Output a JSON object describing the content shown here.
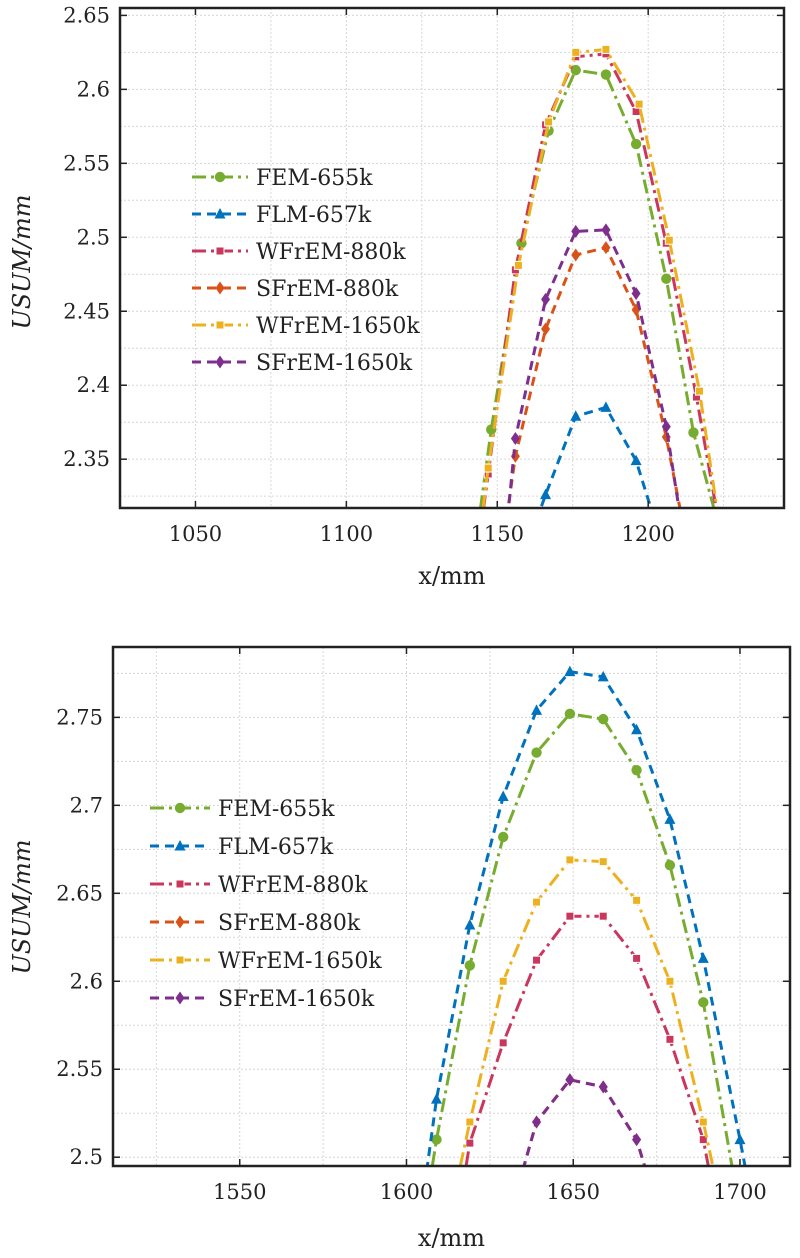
{
  "chart_data": [
    {
      "type": "line",
      "xlabel": "x/mm",
      "ylabel": "USUM/mm",
      "xlim": [
        1025,
        1245
      ],
      "ylim": [
        2.317,
        2.655
      ],
      "xticks": [
        1050,
        1100,
        1150,
        1200
      ],
      "yticks": [
        2.35,
        2.4,
        2.45,
        2.5,
        2.55,
        2.6,
        2.65
      ],
      "xtick_labels": [
        "1050",
        "1100",
        "1150",
        "1200"
      ],
      "ytick_labels": [
        "2.35",
        "2.4",
        "2.45",
        "2.5",
        "2.55",
        "2.6",
        "2.65"
      ],
      "grid": true,
      "legend_position": "left",
      "series": [
        {
          "name": "FEM-655k",
          "color": "#77ac30",
          "style": "dashdot",
          "marker": "circle",
          "x": [
            1142,
            1148,
            1158,
            1167,
            1176,
            1186,
            1196,
            1206,
            1215,
            1224
          ],
          "y": [
            2.28,
            2.37,
            2.496,
            2.572,
            2.613,
            2.61,
            2.563,
            2.472,
            2.368,
            2.3
          ]
        },
        {
          "name": "FLM-657k",
          "color": "#0072bd",
          "style": "dashed",
          "marker": "triangle",
          "x": [
            1158,
            1166,
            1176,
            1186,
            1196,
            1205
          ],
          "y": [
            2.28,
            2.326,
            2.379,
            2.385,
            2.349,
            2.29
          ]
        },
        {
          "name": "WFrEM-880k",
          "color": "#c9375e",
          "style": "dashdot",
          "marker": "square",
          "x": [
            1143,
            1147,
            1156,
            1166,
            1176,
            1186,
            1196,
            1206,
            1216,
            1224
          ],
          "y": [
            2.28,
            2.34,
            2.478,
            2.576,
            2.622,
            2.624,
            2.585,
            2.496,
            2.392,
            2.3
          ]
        },
        {
          "name": "SFrEM-880k",
          "color": "#d95319",
          "style": "dashed",
          "marker": "diamond",
          "x": [
            1151,
            1156,
            1166,
            1176,
            1186,
            1196,
            1206,
            1214
          ],
          "y": [
            2.28,
            2.352,
            2.438,
            2.488,
            2.493,
            2.451,
            2.365,
            2.28
          ]
        },
        {
          "name": "WFrEM-1650k",
          "color": "#edb120",
          "style": "dashdot",
          "marker": "square",
          "x": [
            1143,
            1147,
            1157,
            1167,
            1176,
            1186,
            1197,
            1207,
            1217,
            1224
          ],
          "y": [
            2.28,
            2.344,
            2.481,
            2.578,
            2.625,
            2.627,
            2.59,
            2.498,
            2.396,
            2.3
          ]
        },
        {
          "name": "SFrEM-1650k",
          "color": "#7e2f8e",
          "style": "dashed",
          "marker": "diamond",
          "x": [
            1152,
            1156,
            1166,
            1176,
            1186,
            1196,
            1206,
            1213
          ],
          "y": [
            2.28,
            2.364,
            2.458,
            2.504,
            2.505,
            2.462,
            2.372,
            2.28
          ]
        }
      ]
    },
    {
      "type": "line",
      "xlabel": "x/mm",
      "ylabel": "USUM/mm",
      "xlim": [
        1512,
        1715
      ],
      "ylim": [
        2.495,
        2.79
      ],
      "xticks": [
        1550,
        1600,
        1650,
        1700
      ],
      "yticks": [
        2.5,
        2.55,
        2.6,
        2.65,
        2.7,
        2.75
      ],
      "xtick_labels": [
        "1550",
        "1600",
        "1650",
        "1700"
      ],
      "ytick_labels": [
        "2.5",
        "2.55",
        "2.6",
        "2.65",
        "2.7",
        "2.75"
      ],
      "grid": true,
      "legend_position": "left",
      "series": [
        {
          "name": "FEM-655k",
          "color": "#77ac30",
          "style": "dashdot",
          "marker": "circle",
          "x": [
            1604,
            1609,
            1619,
            1629,
            1639,
            1649,
            1659,
            1669,
            1679,
            1689,
            1699
          ],
          "y": [
            2.45,
            2.51,
            2.609,
            2.682,
            2.73,
            2.752,
            2.749,
            2.72,
            2.666,
            2.588,
            2.48
          ]
        },
        {
          "name": "FLM-657k",
          "color": "#0072bd",
          "style": "dashed",
          "marker": "triangle",
          "x": [
            1603,
            1609,
            1619,
            1629,
            1639,
            1649,
            1659,
            1669,
            1679,
            1689,
            1700,
            1706
          ],
          "y": [
            2.45,
            2.533,
            2.632,
            2.705,
            2.754,
            2.776,
            2.773,
            2.743,
            2.692,
            2.613,
            2.51,
            2.45
          ]
        },
        {
          "name": "WFrEM-880k",
          "color": "#c9375e",
          "style": "dashdot",
          "marker": "square",
          "x": [
            1614,
            1619,
            1629,
            1639,
            1649,
            1659,
            1669,
            1679,
            1689,
            1695
          ],
          "y": [
            2.45,
            2.508,
            2.565,
            2.612,
            2.637,
            2.637,
            2.613,
            2.567,
            2.51,
            2.45
          ]
        },
        {
          "name": "SFrEM-880k",
          "color": "#d95319",
          "style": "dashed",
          "marker": "diamond",
          "x": [
            1630,
            1639,
            1649,
            1659,
            1669,
            1677
          ],
          "y": [
            2.46,
            2.52,
            2.544,
            2.54,
            2.51,
            2.46
          ]
        },
        {
          "name": "WFrEM-1650k",
          "color": "#edb120",
          "style": "dashdot",
          "marker": "square",
          "x": [
            1611,
            1619,
            1629,
            1639,
            1649,
            1659,
            1669,
            1679,
            1689,
            1697
          ],
          "y": [
            2.45,
            2.52,
            2.6,
            2.645,
            2.669,
            2.668,
            2.646,
            2.6,
            2.52,
            2.45
          ]
        },
        {
          "name": "SFrEM-1650k",
          "color": "#7e2f8e",
          "style": "dashed",
          "marker": "diamond",
          "x": [
            1630,
            1639,
            1649,
            1659,
            1669,
            1677
          ],
          "y": [
            2.46,
            2.52,
            2.544,
            2.54,
            2.51,
            2.46
          ]
        }
      ]
    }
  ]
}
